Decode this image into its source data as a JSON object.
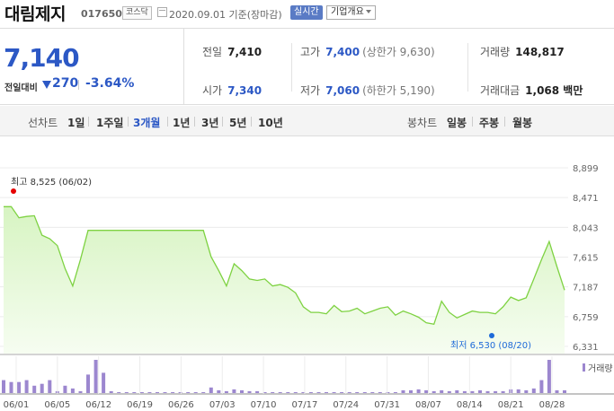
{
  "header": {
    "stock_name": "대림제지",
    "stock_code": "017650",
    "market": "코스닥",
    "date_text": "2020.09.01 기준(장마감)",
    "realtime_label": "실시간",
    "company_label": "기업개요"
  },
  "quote": {
    "price": "7,140",
    "change_label": "전일대비",
    "change_value": "270",
    "change_pct": "-3.64%",
    "prev_close_label": "전일",
    "prev_close": "7,410",
    "open_label": "시가",
    "open": "7,340",
    "high_label": "고가",
    "high": "7,400",
    "upper_limit": "(상한가 9,630)",
    "low_label": "저가",
    "low": "7,060",
    "lower_limit": "(하한가 5,190)",
    "volume_label": "거래량",
    "volume": "148,817",
    "amount_label": "거래대금",
    "amount": "1,068 백만"
  },
  "period_bar": {
    "line_title": "선차트",
    "line_items": [
      "1일",
      "1주일",
      "3개월",
      "1년",
      "3년",
      "5년",
      "10년"
    ],
    "active_index": 2,
    "candle_title": "봉차트",
    "candle_items": [
      "일봉",
      "주봉",
      "월봉"
    ]
  },
  "colors": {
    "accent_blue": "#2c58c5",
    "line_green": "#7ed242",
    "area_fill_top": "#d7f4c2",
    "volume_purple": "#9c87cf",
    "high_marker": "#e60000",
    "low_marker": "#1e6ad8"
  },
  "chart_data": {
    "type": "area",
    "series_main": "price",
    "y_ticks": [
      "8,899",
      "8,471",
      "8,043",
      "7,615",
      "7,187",
      "6,759",
      "6,331"
    ],
    "ylim": [
      6331,
      8899
    ],
    "x_labels": [
      "06/01",
      "06/05",
      "06/12",
      "06/19",
      "06/26",
      "07/03",
      "07/10",
      "07/17",
      "07/24",
      "07/31",
      "08/07",
      "08/14",
      "08/21",
      "08/28"
    ],
    "high_annotation": "최고 8,525 (06/02)",
    "low_annotation": "최저 6,530 (08/20)",
    "price_values": [
      8340,
      8340,
      8180,
      8200,
      8210,
      7930,
      7880,
      7780,
      7450,
      7200,
      7580,
      8000,
      8000,
      8000,
      8000,
      8000,
      8000,
      8000,
      8000,
      8000,
      8000,
      8000,
      8000,
      8000,
      8000,
      8000,
      8000,
      7620,
      7420,
      7200,
      7520,
      7420,
      7300,
      7280,
      7300,
      7200,
      7220,
      7180,
      7100,
      6900,
      6820,
      6820,
      6800,
      6920,
      6830,
      6840,
      6880,
      6800,
      6840,
      6880,
      6900,
      6780,
      6840,
      6800,
      6750,
      6670,
      6650,
      6980,
      6820,
      6740,
      6790,
      6840,
      6820,
      6820,
      6800,
      6900,
      7040,
      6990,
      7030,
      7300,
      7580,
      7840,
      7480,
      7140
    ],
    "volume_label": "거래량",
    "volume_values": [
      14,
      12,
      12,
      14,
      8,
      10,
      14,
      2,
      8,
      5,
      2,
      20,
      36,
      22,
      2,
      1,
      1,
      1,
      1,
      1,
      1,
      1,
      1,
      1,
      1,
      1,
      1,
      6,
      3,
      2,
      4,
      3,
      2,
      2,
      1,
      1,
      1,
      1,
      1,
      1,
      1,
      1,
      1,
      1,
      1,
      1,
      1,
      1,
      1,
      1,
      1,
      1,
      3,
      3,
      4,
      3,
      2,
      3,
      2,
      3,
      2,
      2,
      3,
      2,
      2,
      2,
      4,
      4,
      3,
      5,
      14,
      36,
      3,
      3
    ]
  }
}
